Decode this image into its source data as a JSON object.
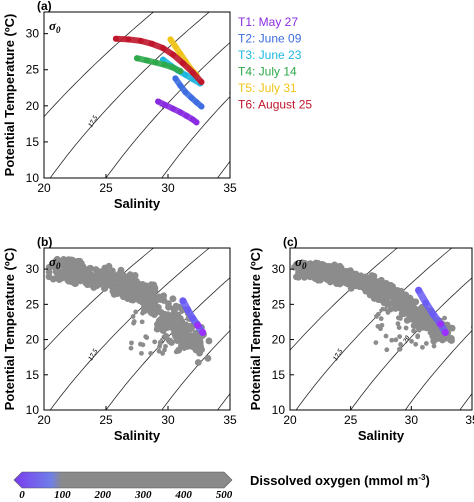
{
  "chart_data": [
    {
      "panel": "(a)",
      "type": "scatter",
      "xlabel": "Salinity",
      "ylabel": "Potential Temperature (ºC)",
      "xlim": [
        20,
        35
      ],
      "ylim": [
        10,
        33
      ],
      "xticks": [
        "20",
        "25",
        "30",
        "35"
      ],
      "yticks": [
        "10",
        "15",
        "20",
        "25",
        "30"
      ],
      "sigma_label": "σ0",
      "contour_labels": [
        "15",
        "17.5",
        "20",
        "22.5",
        "25"
      ],
      "legend_position": "right",
      "series": [
        {
          "name": "T1: May 27",
          "color": "#8a2be2",
          "points": [
            [
              29.2,
              20.6
            ],
            [
              29.8,
              20.1
            ],
            [
              30.4,
              19.6
            ],
            [
              31.0,
              19.1
            ],
            [
              31.5,
              18.6
            ],
            [
              32.0,
              18.1
            ],
            [
              32.3,
              17.7
            ]
          ]
        },
        {
          "name": "T2: June 09",
          "color": "#3d6de0",
          "points": [
            [
              30.6,
              23.8
            ],
            [
              31.0,
              22.8
            ],
            [
              31.4,
              21.9
            ],
            [
              31.9,
              21.1
            ],
            [
              32.3,
              20.5
            ],
            [
              32.7,
              19.9
            ]
          ]
        },
        {
          "name": "T3: June 23",
          "color": "#1fb7e0",
          "points": [
            [
              29.6,
              26.4
            ],
            [
              30.2,
              25.6
            ],
            [
              30.8,
              24.9
            ],
            [
              31.4,
              24.3
            ],
            [
              32.0,
              23.7
            ],
            [
              32.6,
              23.1
            ]
          ]
        },
        {
          "name": "T4: July 14",
          "color": "#2da84a",
          "points": [
            [
              27.5,
              26.6
            ],
            [
              28.3,
              26.3
            ],
            [
              29.0,
              26.0
            ],
            [
              29.7,
              25.7
            ],
            [
              30.4,
              25.3
            ],
            [
              31.0,
              24.8
            ]
          ]
        },
        {
          "name": "T5: July 31",
          "color": "#f0c419",
          "points": [
            [
              30.2,
              29.2
            ],
            [
              30.6,
              28.2
            ],
            [
              31.0,
              27.2
            ],
            [
              31.4,
              26.2
            ],
            [
              31.8,
              25.2
            ],
            [
              32.3,
              24.3
            ]
          ]
        },
        {
          "name": "T6: August 25",
          "color": "#c0162b",
          "points": [
            [
              25.8,
              29.3
            ],
            [
              26.8,
              29.2
            ],
            [
              27.8,
              29.0
            ],
            [
              28.7,
              28.6
            ],
            [
              29.6,
              28.0
            ],
            [
              30.4,
              27.1
            ],
            [
              31.2,
              25.9
            ],
            [
              32.0,
              24.6
            ],
            [
              32.7,
              23.3
            ]
          ]
        }
      ]
    },
    {
      "panel": "(b)",
      "type": "scatter",
      "xlabel": "Salinity",
      "ylabel": "Potential Temperature (ºC)",
      "xlim": [
        20,
        35
      ],
      "ylim": [
        10,
        33
      ],
      "xticks": [
        "20",
        "25",
        "30",
        "35"
      ],
      "yticks": [
        "10",
        "15",
        "20",
        "25",
        "30"
      ],
      "sigma_label": "σ0",
      "contour_labels": [
        "15",
        "17.5",
        "20",
        "22.5",
        "25"
      ],
      "color_variable": "Dissolved oxygen",
      "cloud_range": {
        "x": [
          20,
          33
        ],
        "y": [
          18,
          31
        ]
      },
      "highlight_points": [
        [
          31.2,
          25.5
        ],
        [
          31.6,
          24.2
        ],
        [
          32.0,
          23.0
        ],
        [
          32.4,
          22.0
        ],
        [
          32.8,
          21.0
        ]
      ]
    },
    {
      "panel": "(c)",
      "type": "scatter",
      "xlabel": "Salinity",
      "ylabel": "Potential Temperature (ºC)",
      "xlim": [
        20,
        35
      ],
      "ylim": [
        10,
        33
      ],
      "xticks": [
        "20",
        "25",
        "30",
        "35"
      ],
      "yticks": [
        "10",
        "15",
        "20",
        "25",
        "30"
      ],
      "sigma_label": "σ0",
      "contour_labels": [
        "15",
        "17.5",
        "20",
        "22.5",
        "25"
      ],
      "color_variable": "Dissolved oxygen",
      "cloud_range": {
        "x": [
          20,
          33
        ],
        "y": [
          18,
          31
        ]
      },
      "highlight_points": [
        [
          30.6,
          27.0
        ],
        [
          31.2,
          25.2
        ],
        [
          31.8,
          23.6
        ],
        [
          32.4,
          22.2
        ],
        [
          32.8,
          21.0
        ]
      ]
    }
  ],
  "colorbar": {
    "label": "Dissolved oxygen (mmol m",
    "label_exp": "-3",
    "label_close": ")",
    "ticks": [
      "0",
      "100",
      "200",
      "300",
      "400",
      "500"
    ],
    "range": [
      0,
      500
    ],
    "low_color": "#7a3cf0",
    "high_color": "#8a8a8a"
  },
  "colors": {
    "cloud": "#8c8c8c",
    "contour": "#2a2a2a",
    "low_oxygen": "#6a5cf5",
    "anoxic": "#9b30ff"
  }
}
